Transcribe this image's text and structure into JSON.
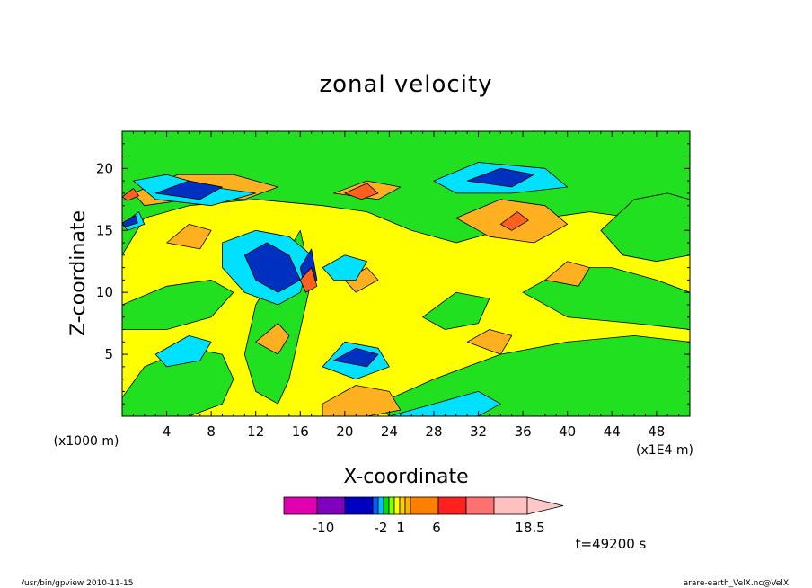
{
  "chart_data": {
    "type": "heatmap",
    "title": "zonal velocity",
    "xlabel": "X-coordinate",
    "ylabel": "Z-coordinate",
    "x_unit_left": "(x1000 m)",
    "x_unit_right": "(x1E4 m)",
    "xlim": [
      0,
      51
    ],
    "ylim": [
      0,
      23
    ],
    "x_ticks": [
      4,
      8,
      12,
      16,
      20,
      24,
      28,
      32,
      36,
      40,
      44,
      48
    ],
    "y_ticks": [
      5,
      10,
      15,
      20
    ],
    "x_tick_labels": [
      "4",
      "8",
      "12",
      "16",
      "20",
      "24",
      "28",
      "32",
      "36",
      "40",
      "44",
      "48"
    ],
    "y_tick_labels": [
      "5",
      "10",
      "15",
      "20"
    ],
    "background_level_color": "#ffff00",
    "regions": [
      {
        "level": "green",
        "points": [
          [
            0,
            13
          ],
          [
            2,
            16
          ],
          [
            6,
            17
          ],
          [
            12,
            17.5
          ],
          [
            18,
            17
          ],
          [
            22,
            16.5
          ],
          [
            26,
            15
          ],
          [
            30,
            14
          ],
          [
            34,
            15
          ],
          [
            38,
            16
          ],
          [
            42,
            16.5
          ],
          [
            46,
            16
          ],
          [
            51,
            17
          ],
          [
            51,
            23
          ],
          [
            0,
            23
          ]
        ]
      },
      {
        "level": "green",
        "points": [
          [
            0,
            9
          ],
          [
            4,
            10.5
          ],
          [
            8,
            11
          ],
          [
            10,
            10
          ],
          [
            8,
            8
          ],
          [
            4,
            7
          ],
          [
            0,
            7
          ]
        ]
      },
      {
        "level": "green",
        "points": [
          [
            0,
            1.5
          ],
          [
            2,
            4
          ],
          [
            6,
            5.5
          ],
          [
            9,
            5
          ],
          [
            10,
            3
          ],
          [
            9,
            1
          ],
          [
            6,
            0
          ],
          [
            0,
            0
          ]
        ]
      },
      {
        "level": "green",
        "points": [
          [
            23,
            1
          ],
          [
            28,
            3
          ],
          [
            34,
            5
          ],
          [
            40,
            6
          ],
          [
            46,
            6.5
          ],
          [
            51,
            6
          ],
          [
            51,
            0
          ],
          [
            24,
            0
          ]
        ]
      },
      {
        "level": "green",
        "points": [
          [
            36,
            10
          ],
          [
            40,
            12
          ],
          [
            44,
            12
          ],
          [
            48,
            11
          ],
          [
            51,
            10
          ],
          [
            51,
            7
          ],
          [
            46,
            7.5
          ],
          [
            40,
            8
          ]
        ]
      },
      {
        "level": "green",
        "points": [
          [
            27,
            8
          ],
          [
            30,
            10
          ],
          [
            33,
            9.5
          ],
          [
            32,
            7.5
          ],
          [
            29,
            7
          ]
        ]
      },
      {
        "level": "green",
        "points": [
          [
            12,
            9
          ],
          [
            14,
            12
          ],
          [
            16,
            15
          ],
          [
            17,
            11
          ],
          [
            16,
            7
          ],
          [
            15,
            3
          ],
          [
            14,
            1
          ],
          [
            12,
            2
          ],
          [
            11,
            5
          ]
        ]
      },
      {
        "level": "green",
        "points": [
          [
            43,
            15
          ],
          [
            46,
            17.5
          ],
          [
            49,
            18
          ],
          [
            51,
            17.5
          ],
          [
            51,
            13
          ],
          [
            48,
            12.5
          ],
          [
            45,
            13
          ]
        ]
      },
      {
        "level": "orange",
        "points": [
          [
            1,
            18
          ],
          [
            5,
            19.5
          ],
          [
            10,
            19.5
          ],
          [
            14,
            18.5
          ],
          [
            11,
            17.5
          ],
          [
            6,
            17.5
          ],
          [
            2,
            17
          ]
        ]
      },
      {
        "level": "orange",
        "points": [
          [
            4,
            14
          ],
          [
            6,
            15.5
          ],
          [
            8,
            15
          ],
          [
            7,
            13.5
          ]
        ]
      },
      {
        "level": "orange",
        "points": [
          [
            12,
            6
          ],
          [
            14,
            7.5
          ],
          [
            15,
            6.5
          ],
          [
            14,
            5
          ]
        ]
      },
      {
        "level": "orange",
        "points": [
          [
            18,
            1
          ],
          [
            21,
            2.5
          ],
          [
            24,
            2
          ],
          [
            25,
            0.5
          ],
          [
            22,
            0
          ],
          [
            18,
            0
          ]
        ]
      },
      {
        "level": "orange",
        "points": [
          [
            31,
            6
          ],
          [
            33,
            7
          ],
          [
            35,
            6.5
          ],
          [
            34,
            5
          ]
        ]
      },
      {
        "level": "orange",
        "points": [
          [
            30,
            16
          ],
          [
            34,
            17.5
          ],
          [
            38,
            17
          ],
          [
            40,
            15.5
          ],
          [
            37,
            14
          ],
          [
            33,
            14.5
          ]
        ]
      },
      {
        "level": "orange",
        "points": [
          [
            38,
            11
          ],
          [
            40,
            12.5
          ],
          [
            42,
            12
          ],
          [
            41,
            10.5
          ]
        ]
      },
      {
        "level": "orange",
        "points": [
          [
            19,
            18
          ],
          [
            22,
            19
          ],
          [
            25,
            18.5
          ],
          [
            23,
            17.5
          ]
        ]
      },
      {
        "level": "orange",
        "points": [
          [
            20,
            11
          ],
          [
            22,
            12
          ],
          [
            23,
            11
          ],
          [
            21,
            10
          ]
        ]
      },
      {
        "level": "cyan",
        "points": [
          [
            3,
            5
          ],
          [
            6,
            6.5
          ],
          [
            8,
            6
          ],
          [
            7,
            4.5
          ],
          [
            4,
            4
          ]
        ]
      },
      {
        "level": "cyan",
        "points": [
          [
            9,
            14
          ],
          [
            12,
            15
          ],
          [
            15,
            14.5
          ],
          [
            17,
            13
          ],
          [
            16,
            10
          ],
          [
            14,
            9
          ],
          [
            11,
            10
          ],
          [
            9,
            12
          ]
        ]
      },
      {
        "level": "cyan",
        "points": [
          [
            18,
            12
          ],
          [
            20,
            13
          ],
          [
            22,
            12.5
          ],
          [
            21,
            11
          ],
          [
            19,
            11
          ]
        ]
      },
      {
        "level": "cyan",
        "points": [
          [
            18,
            4
          ],
          [
            20,
            6
          ],
          [
            23,
            5.5
          ],
          [
            24,
            4
          ],
          [
            21,
            3
          ]
        ]
      },
      {
        "level": "cyan",
        "points": [
          [
            24,
            0
          ],
          [
            28,
            1
          ],
          [
            32,
            2
          ],
          [
            34,
            1
          ],
          [
            32,
            0
          ]
        ]
      },
      {
        "level": "cyan",
        "points": [
          [
            28,
            19
          ],
          [
            32,
            20.5
          ],
          [
            38,
            20
          ],
          [
            40,
            18.5
          ],
          [
            35,
            18
          ],
          [
            30,
            18
          ]
        ]
      },
      {
        "level": "cyan",
        "points": [
          [
            1,
            19
          ],
          [
            4,
            19.5
          ],
          [
            8,
            18.5
          ],
          [
            12,
            18
          ],
          [
            8,
            17
          ],
          [
            3,
            17.5
          ]
        ]
      },
      {
        "level": "cyan",
        "points": [
          [
            0,
            15.5
          ],
          [
            1.5,
            16.5
          ],
          [
            2,
            15.5
          ],
          [
            0.5,
            15
          ]
        ]
      },
      {
        "level": "blue",
        "points": [
          [
            3,
            18
          ],
          [
            6,
            19
          ],
          [
            9,
            18.5
          ],
          [
            7,
            17.5
          ]
        ]
      },
      {
        "level": "blue",
        "points": [
          [
            11,
            13
          ],
          [
            13,
            14
          ],
          [
            15,
            13
          ],
          [
            16,
            11
          ],
          [
            14,
            10
          ],
          [
            12,
            11
          ]
        ]
      },
      {
        "level": "blue",
        "points": [
          [
            19,
            4.5
          ],
          [
            21,
            5.5
          ],
          [
            23,
            5
          ],
          [
            22,
            4
          ]
        ]
      },
      {
        "level": "blue",
        "points": [
          [
            31,
            19
          ],
          [
            34,
            20
          ],
          [
            37,
            19.5
          ],
          [
            35,
            18.5
          ]
        ]
      },
      {
        "level": "blue",
        "points": [
          [
            0,
            15.6
          ],
          [
            1.2,
            16.2
          ],
          [
            1.4,
            15.6
          ],
          [
            0.3,
            15.3
          ]
        ]
      },
      {
        "level": "blue",
        "points": [
          [
            16,
            12
          ],
          [
            17,
            13.5
          ],
          [
            17.5,
            11
          ],
          [
            16.5,
            10
          ]
        ]
      },
      {
        "level": "red",
        "points": [
          [
            20,
            18
          ],
          [
            22,
            18.8
          ],
          [
            23,
            18
          ],
          [
            21.5,
            17.5
          ]
        ]
      },
      {
        "level": "red",
        "points": [
          [
            34,
            15.5
          ],
          [
            35.5,
            16.5
          ],
          [
            36.5,
            15.8
          ],
          [
            35,
            15
          ]
        ]
      },
      {
        "level": "red",
        "points": [
          [
            16,
            11
          ],
          [
            17,
            12
          ],
          [
            17.5,
            10.5
          ],
          [
            16.5,
            10
          ]
        ]
      },
      {
        "level": "red",
        "points": [
          [
            0,
            17.7
          ],
          [
            1,
            18.4
          ],
          [
            1.5,
            17.8
          ],
          [
            0.5,
            17.4
          ]
        ]
      }
    ],
    "contour_levels": [
      -12,
      -10,
      -8,
      -6,
      -4,
      -2,
      -1,
      0,
      1,
      2,
      3,
      4,
      6,
      8,
      10,
      12,
      14.5,
      18.5
    ],
    "colorbar": {
      "colors": [
        "#e000b0",
        "#8000c0",
        "#0000c0",
        "#0060ff",
        "#00c0ff",
        "#00e000",
        "#80ff00",
        "#ffff00",
        "#ffd000",
        "#ffb000",
        "#ff8000",
        "#ff2020",
        "#ff7070",
        "#ffc0c0"
      ],
      "labels": [
        "-10",
        "-2",
        "1",
        "6",
        "18.5"
      ]
    },
    "level_colors": {
      "blue": "#0030c0",
      "cyan": "#00e0ff",
      "green": "#20e020",
      "yellow": "#ffff00",
      "orange": "#ffb020",
      "red": "#ff6020"
    }
  },
  "time_label": "t=49200 s",
  "footer_left": "/usr/bin/gpview   2010-11-15",
  "footer_right": "arare-earth_VelX.nc@VelX"
}
